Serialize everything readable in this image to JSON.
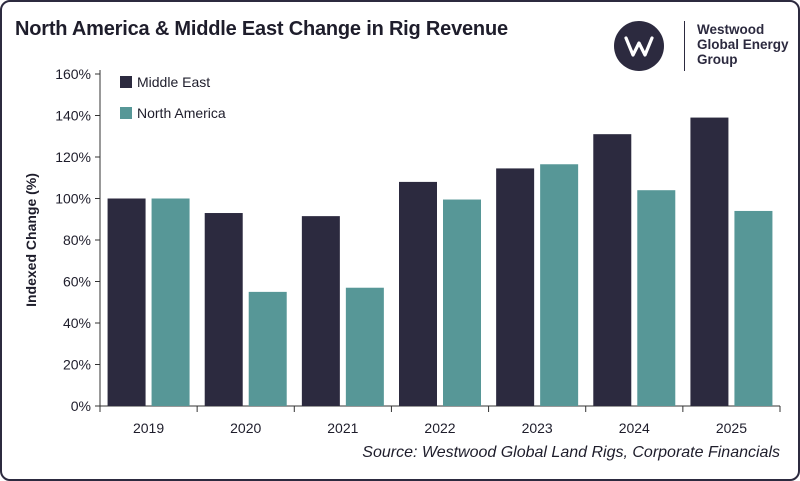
{
  "title": "North America & Middle East Change in Rig Revenue",
  "logo": {
    "icon": "westwood-w-logo-icon",
    "lines": [
      "Westwood",
      "Global Energy",
      "Group"
    ]
  },
  "source": "Source: Westwood Global Land Rigs, Corporate Financials",
  "colors": {
    "middle_east": "#2c2a3f",
    "north_america": "#579797"
  },
  "chart_data": {
    "type": "bar",
    "title": "North America & Middle East Change in Rig Revenue",
    "xlabel": "",
    "ylabel": "Indexed Change (%)",
    "categories": [
      "2019",
      "2020",
      "2021",
      "2022",
      "2023",
      "2024",
      "2025"
    ],
    "series": [
      {
        "name": "Middle East",
        "values": [
          100,
          93,
          91.5,
          108,
          114.5,
          131,
          139
        ]
      },
      {
        "name": "North America",
        "values": [
          100,
          55,
          57,
          99.5,
          116.5,
          104,
          94
        ]
      }
    ],
    "ylim": [
      0,
      160
    ],
    "yticks": [
      0,
      20,
      40,
      60,
      80,
      100,
      120,
      140,
      160
    ],
    "ytick_suffix": "%",
    "grid": false,
    "legend": "top-left"
  }
}
